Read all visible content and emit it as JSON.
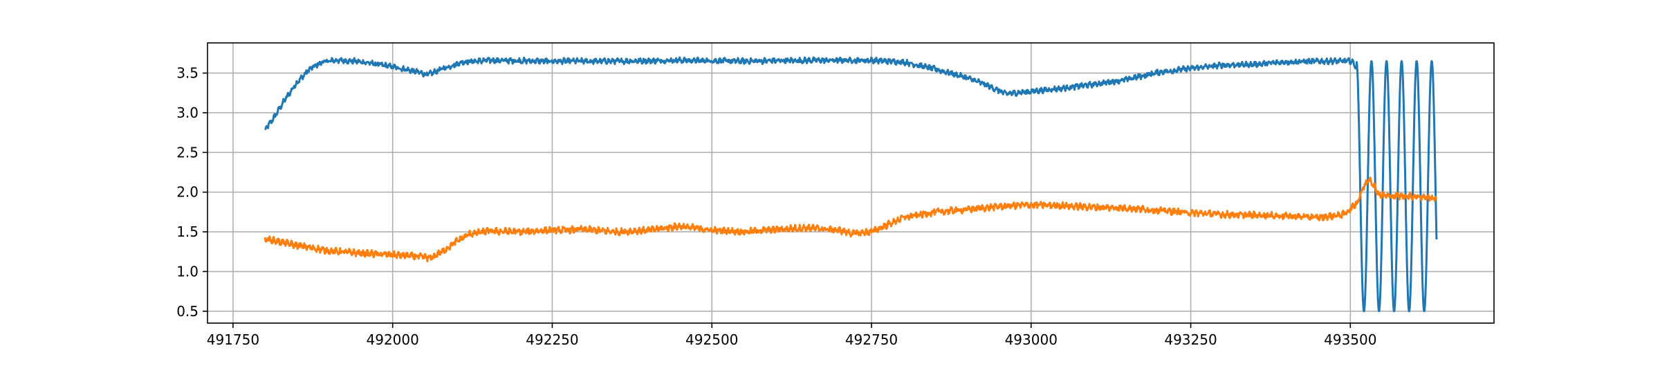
{
  "chart_data": {
    "type": "line",
    "title": "",
    "xlabel": "",
    "ylabel": "",
    "xlim": [
      491710,
      493725
    ],
    "ylim": [
      0.35,
      3.88
    ],
    "xticks": [
      491750,
      492000,
      492250,
      492500,
      492750,
      493000,
      493250,
      493500
    ],
    "xtick_labels": [
      "491750",
      "492000",
      "492250",
      "492500",
      "492750",
      "493000",
      "493250",
      "493500"
    ],
    "yticks": [
      0.5,
      1.0,
      1.5,
      2.0,
      2.5,
      3.0,
      3.5
    ],
    "ytick_labels": [
      "0.5",
      "1.0",
      "1.5",
      "2.0",
      "2.5",
      "3.0",
      "3.5"
    ],
    "grid": true,
    "legend": "none",
    "series": [
      {
        "color": "#1f77b4",
        "noise": 0.025,
        "x": [
          491800,
          491815,
          491830,
          491850,
          491870,
          491890,
          491910,
          491940,
          491970,
          492000,
          492030,
          492055,
          492080,
          492110,
          492150,
          492250,
          492350,
          492450,
          492550,
          492650,
          492750,
          492800,
          492850,
          492900,
          492930,
          492960,
          492990,
          493050,
          493100,
          493150,
          493200,
          493250,
          493300,
          493350,
          493400,
          493450,
          493490,
          493500,
          493505,
          493510
        ],
        "y": [
          2.78,
          2.95,
          3.15,
          3.38,
          3.55,
          3.64,
          3.66,
          3.65,
          3.62,
          3.58,
          3.53,
          3.48,
          3.56,
          3.64,
          3.66,
          3.65,
          3.65,
          3.66,
          3.65,
          3.66,
          3.66,
          3.64,
          3.55,
          3.44,
          3.35,
          3.24,
          3.26,
          3.31,
          3.36,
          3.42,
          3.51,
          3.56,
          3.6,
          3.61,
          3.64,
          3.65,
          3.65,
          3.65,
          3.63,
          3.55
        ],
        "oscillation": {
          "x_start": 493510,
          "x_end": 493635,
          "y_min": 0.5,
          "y_max": 3.65,
          "cycles": 5.3,
          "start_phase": 0.02
        }
      },
      {
        "color": "#ff7f0e",
        "noise": 0.03,
        "x": [
          491800,
          491850,
          491900,
          491950,
          492000,
          492040,
          492060,
          492080,
          492100,
          492120,
          492150,
          492200,
          492250,
          492300,
          492350,
          492400,
          492450,
          492500,
          492550,
          492600,
          492650,
          492700,
          492720,
          492750,
          492770,
          492800,
          492850,
          492900,
          492950,
          493000,
          493050,
          493100,
          493150,
          493200,
          493250,
          493300,
          493350,
          493400,
          493450,
          493490,
          493510,
          493520,
          493530,
          493545,
          493560,
          493600,
          493635
        ],
        "y": [
          1.41,
          1.33,
          1.26,
          1.23,
          1.21,
          1.19,
          1.17,
          1.26,
          1.38,
          1.47,
          1.51,
          1.5,
          1.52,
          1.53,
          1.5,
          1.52,
          1.57,
          1.52,
          1.5,
          1.53,
          1.55,
          1.52,
          1.48,
          1.5,
          1.57,
          1.68,
          1.75,
          1.78,
          1.82,
          1.84,
          1.83,
          1.81,
          1.8,
          1.77,
          1.74,
          1.72,
          1.71,
          1.7,
          1.68,
          1.72,
          1.86,
          2.05,
          2.18,
          1.97,
          1.95,
          1.95,
          1.92
        ]
      }
    ]
  }
}
